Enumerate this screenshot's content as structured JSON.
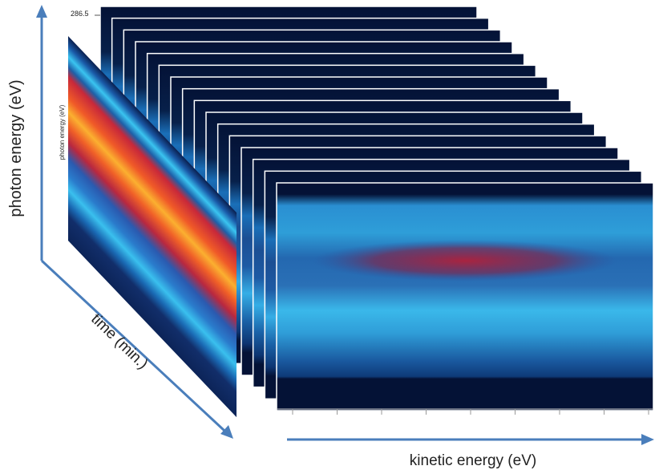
{
  "figure": {
    "axis_photon_energy": "photon energy (eV)",
    "axis_time": "time (min.)",
    "axis_kinetic_energy": "kinetic energy (eV)",
    "back_frame_tick": "286.5",
    "back_frame_axis": "photon energy (eV)"
  }
}
